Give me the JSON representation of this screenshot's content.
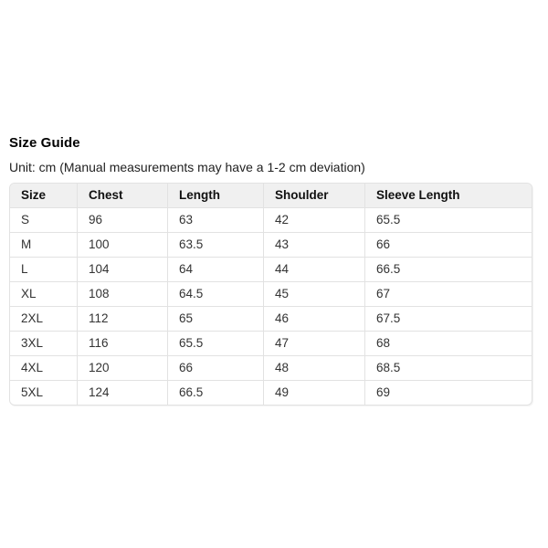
{
  "page": {
    "title": "Size Guide",
    "unit_note": "Unit: cm (Manual measurements may have a 1-2 cm deviation)"
  },
  "table": {
    "columns": [
      "Size",
      "Chest",
      "Length",
      "Shoulder",
      "Sleeve Length"
    ],
    "rows": [
      [
        "S",
        "96",
        "63",
        "42",
        "65.5"
      ],
      [
        "M",
        "100",
        "63.5",
        "43",
        "66"
      ],
      [
        "L",
        "104",
        "64",
        "44",
        "66.5"
      ],
      [
        "XL",
        "108",
        "64.5",
        "45",
        "67"
      ],
      [
        "2XL",
        "112",
        "65",
        "46",
        "67.5"
      ],
      [
        "3XL",
        "116",
        "65.5",
        "47",
        "68"
      ],
      [
        "4XL",
        "120",
        "66",
        "48",
        "68.5"
      ],
      [
        "5XL",
        "124",
        "66.5",
        "49",
        "69"
      ]
    ]
  },
  "colors": {
    "header_bg": "#f0f0f0",
    "border": "#e2e2e2",
    "title_text": "#000000",
    "cell_text": "#333333"
  }
}
